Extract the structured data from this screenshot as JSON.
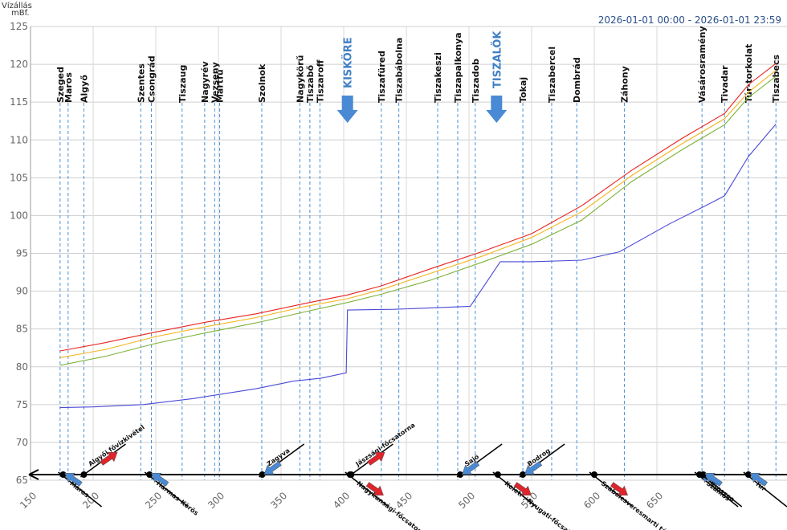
{
  "header": {
    "y_axis_title": "Vízállás mBf.",
    "time_range": "2026-01-01 00:00 - 2026-01-01 23:59"
  },
  "chart_data": {
    "type": "line",
    "xlim": [
      150,
      730
    ],
    "ylim": [
      65,
      125
    ],
    "x_ticks": [
      150,
      200,
      250,
      300,
      350,
      400,
      450,
      500,
      550,
      600,
      650
    ],
    "y_ticks": [
      65,
      70,
      75,
      80,
      85,
      90,
      95,
      100,
      105,
      110,
      115,
      120,
      125
    ],
    "grid": true,
    "stations": [
      {
        "name": "Szeged",
        "km": 173.6
      },
      {
        "name": "Maros",
        "km": 180
      },
      {
        "name": "Algyő",
        "km": 192.6
      },
      {
        "name": "Szentes",
        "km": 238
      },
      {
        "name": "Csongrád",
        "km": 246.5
      },
      {
        "name": "Tiszaug",
        "km": 271
      },
      {
        "name": "Nagyrév",
        "km": 289
      },
      {
        "name": "Vezseny",
        "km": 297
      },
      {
        "name": "Martfű",
        "km": 301
      },
      {
        "name": "Szolnok",
        "km": 334.6
      },
      {
        "name": "Nagykörű",
        "km": 365
      },
      {
        "name": "Tiszabő",
        "km": 373
      },
      {
        "name": "Tiszaroff",
        "km": 381
      },
      {
        "name": "Tiszafüred",
        "km": 430
      },
      {
        "name": "Tiszabábolna",
        "km": 444
      },
      {
        "name": "Tiszakeszi",
        "km": 475
      },
      {
        "name": "Tiszapalkonya",
        "km": 491
      },
      {
        "name": "Tiszadob",
        "km": 505
      },
      {
        "name": "Tokaj",
        "km": 543
      },
      {
        "name": "Tiszabercel",
        "km": 566
      },
      {
        "name": "Dombrád",
        "km": 586
      },
      {
        "name": "Záhony",
        "km": 624
      },
      {
        "name": "Vásárosramény",
        "km": 686
      },
      {
        "name": "Tivadar",
        "km": 704
      },
      {
        "name": "Túr-torkolat",
        "km": 723
      },
      {
        "name": "Tiszabecs",
        "km": 745
      }
    ],
    "dams": [
      {
        "name": "KISKÖRE",
        "km": 403
      },
      {
        "name": "TISZALÖK",
        "km": 522
      }
    ],
    "series": [
      {
        "color": "#e8231f",
        "x": [
          173.6,
          210,
          250,
          290,
          330,
          370,
          403,
          430,
          470,
          510,
          550,
          590,
          630,
          670,
          704,
          723,
          745
        ],
        "y": [
          82.1,
          83.2,
          84.6,
          85.9,
          87.0,
          88.4,
          89.5,
          90.7,
          93.0,
          95.2,
          97.6,
          101.3,
          106.0,
          110.2,
          113.5,
          117.3,
          120.1
        ]
      },
      {
        "color": "#f2b51c",
        "x": [
          173.6,
          210,
          250,
          290,
          330,
          370,
          403,
          430,
          470,
          510,
          550,
          590,
          630,
          670,
          704,
          723,
          745
        ],
        "y": [
          81.2,
          82.3,
          84.0,
          85.3,
          86.5,
          88.0,
          89.0,
          90.2,
          92.4,
          94.6,
          97.1,
          100.5,
          105.3,
          109.5,
          112.8,
          116.3,
          119.2
        ]
      },
      {
        "color": "#7db33a",
        "x": [
          173.6,
          210,
          250,
          290,
          330,
          370,
          403,
          430,
          470,
          510,
          550,
          590,
          630,
          670,
          704,
          723,
          745
        ],
        "y": [
          80.2,
          81.4,
          83.1,
          84.5,
          85.8,
          87.3,
          88.5,
          89.6,
          91.5,
          93.8,
          96.2,
          99.4,
          104.5,
          108.7,
          112.0,
          115.6,
          118.4
        ]
      },
      {
        "color": "#4a4ad8",
        "x": [
          173.6,
          200,
          240,
          280,
          330,
          360,
          382,
          402,
          403,
          440,
          472,
          501,
          525,
          550,
          590,
          620,
          660,
          690,
          704,
          723,
          745
        ],
        "y": [
          74.6,
          74.7,
          75.0,
          75.8,
          77.1,
          78.1,
          78.5,
          79.2,
          87.5,
          87.6,
          87.8,
          88.0,
          93.9,
          93.9,
          94.1,
          95.2,
          98.9,
          101.4,
          102.6,
          107.8,
          112.1
        ]
      }
    ],
    "tributaries": [
      {
        "name": "Algyői fővízkivétel",
        "km": 192.6,
        "side": "above",
        "flow": "out"
      },
      {
        "name": "Maros",
        "km": 176,
        "side": "below",
        "flow": "in"
      },
      {
        "name": "Hármas-Körös",
        "km": 245,
        "side": "below",
        "flow": "in"
      },
      {
        "name": "Zagyva",
        "km": 335,
        "side": "above",
        "flow": "in"
      },
      {
        "name": "Jászsági-főcsatorna",
        "km": 406,
        "side": "above",
        "flow": "out"
      },
      {
        "name": "Nagykunsági-főcsatorna",
        "km": 405,
        "side": "below",
        "flow": "out"
      },
      {
        "name": "Sajó",
        "km": 493,
        "side": "above",
        "flow": "in"
      },
      {
        "name": "Keleti-, Nyugati-főcsatorna",
        "km": 523,
        "side": "below",
        "flow": "out"
      },
      {
        "name": "Bodrog",
        "km": 543,
        "side": "above",
        "flow": "in"
      },
      {
        "name": "Szabolcsveresmarti tározó",
        "km": 600,
        "side": "below",
        "flow": "out"
      },
      {
        "name": "Szamos",
        "km": 684,
        "side": "below",
        "flow": "in"
      },
      {
        "name": "Kraszna",
        "km": 687,
        "side": "below",
        "flow": "in"
      },
      {
        "name": "Túr",
        "km": 723,
        "side": "below",
        "flow": "in"
      }
    ]
  }
}
